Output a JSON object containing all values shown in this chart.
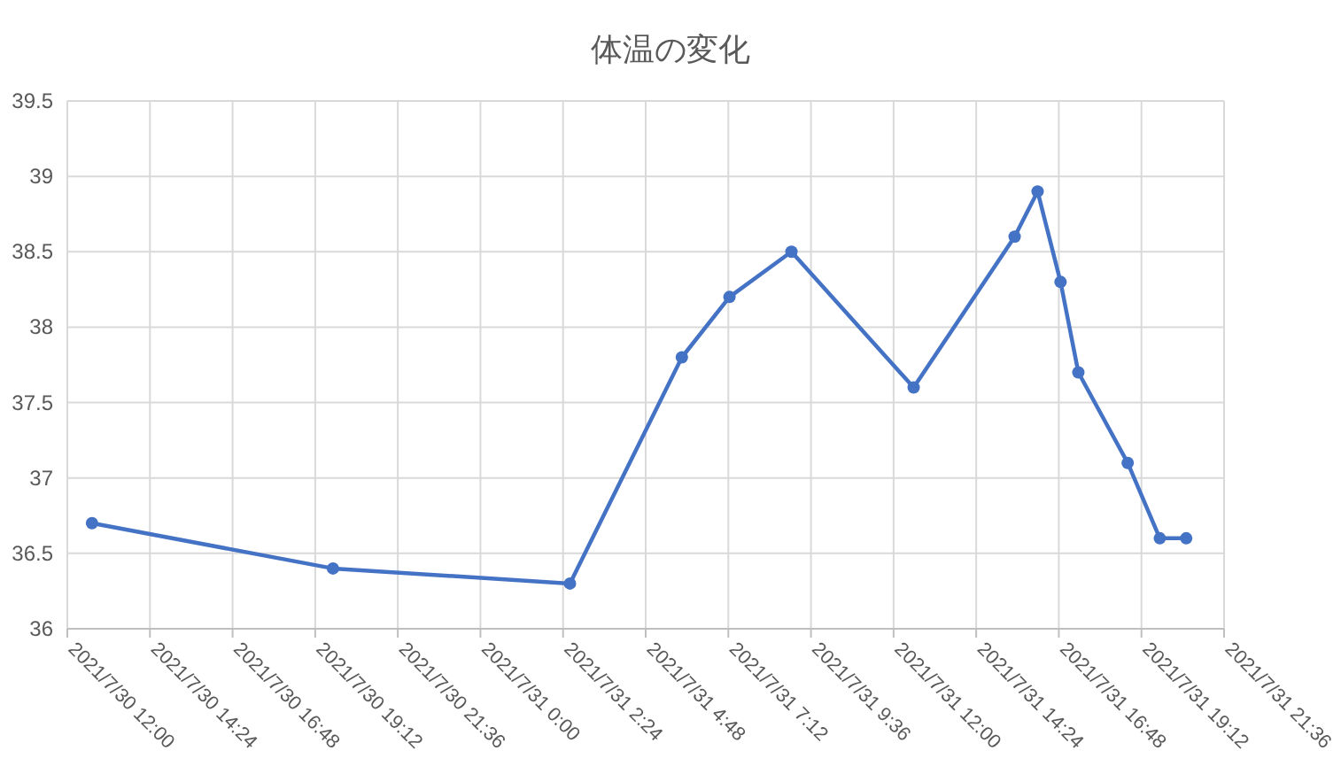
{
  "chart_data": {
    "type": "line",
    "title": "体温の変化",
    "x": [
      "2021-07-30T12:43",
      "2021-07-30T19:43",
      "2021-07-31T02:36",
      "2021-07-31T05:51",
      "2021-07-31T07:14",
      "2021-07-31T09:02",
      "2021-07-31T12:35",
      "2021-07-31T15:31",
      "2021-07-31T16:11",
      "2021-07-31T16:51",
      "2021-07-31T17:22",
      "2021-07-31T18:48",
      "2021-07-31T19:44",
      "2021-07-31T20:30"
    ],
    "series": [
      {
        "color": "#4472c4",
        "values": [
          36.7,
          36.4,
          36.3,
          37.8,
          38.2,
          38.5,
          37.6,
          38.6,
          38.9,
          38.3,
          37.7,
          37.1,
          36.6,
          36.6
        ]
      }
    ],
    "xlim": [
      "2021-07-30T12:00",
      "2021-07-31T21:36"
    ],
    "xticks": [
      {
        "value": "2021-07-30T12:00",
        "label": "2021/7/30 12:00"
      },
      {
        "value": "2021-07-30T14:24",
        "label": "2021/7/30 14:24"
      },
      {
        "value": "2021-07-30T16:48",
        "label": "2021/7/30 16:48"
      },
      {
        "value": "2021-07-30T19:12",
        "label": "2021/7/30 19:12"
      },
      {
        "value": "2021-07-30T21:36",
        "label": "2021/7/30 21:36"
      },
      {
        "value": "2021-07-31T00:00",
        "label": "2021/7/31 0:00"
      },
      {
        "value": "2021-07-31T02:24",
        "label": "2021/7/31 2:24"
      },
      {
        "value": "2021-07-31T04:48",
        "label": "2021/7/31 4:48"
      },
      {
        "value": "2021-07-31T07:12",
        "label": "2021/7/31 7:12"
      },
      {
        "value": "2021-07-31T09:36",
        "label": "2021/7/31 9:36"
      },
      {
        "value": "2021-07-31T12:00",
        "label": "2021/7/31 12:00"
      },
      {
        "value": "2021-07-31T14:24",
        "label": "2021/7/31 14:24"
      },
      {
        "value": "2021-07-31T16:48",
        "label": "2021/7/31 16:48"
      },
      {
        "value": "2021-07-31T19:12",
        "label": "2021/7/31 19:12"
      },
      {
        "value": "2021-07-31T21:36",
        "label": "2021/7/31 21:36"
      }
    ],
    "ylim": [
      36,
      39.5
    ],
    "yticks": [
      36,
      36.5,
      37,
      37.5,
      38,
      38.5,
      39,
      39.5
    ],
    "grid": true,
    "marker": "circle",
    "line_style": "solid"
  }
}
